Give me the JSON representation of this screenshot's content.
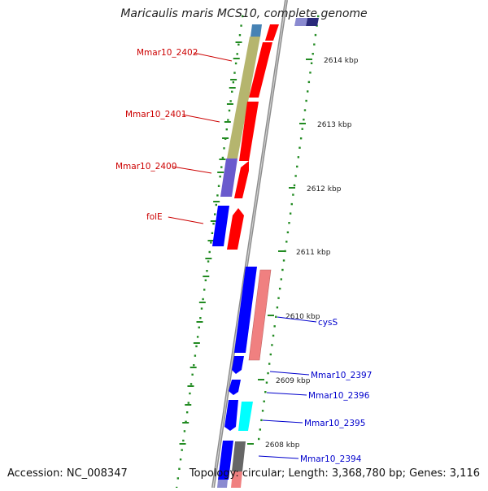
{
  "title": "Maricaulis maris MCS10, complete genome",
  "footer": {
    "accession": "Accession: NC_008347",
    "topology": "Topology: circular; Length: 3,368,780 bp; Genes: 3,116"
  },
  "colors": {
    "backbone": "#888888",
    "tick": "#228B22",
    "label_left": "#cc0000",
    "label_right": "#0000cc",
    "cds_forward": "#ff0000",
    "cds_forward_light": "#f08080",
    "cds_reverse": "#0000ff",
    "trna": "#00ffff",
    "cog_olive": "#b5b56e",
    "cog_purple": "#6a5acd",
    "cog_steelblue": "#4682b4",
    "cog_gray": "#666666"
  },
  "scale": [
    {
      "label": "2614 kbp",
      "kbp": 2614
    },
    {
      "label": "2613 kbp",
      "kbp": 2613
    },
    {
      "label": "2612 kbp",
      "kbp": 2612
    },
    {
      "label": "2611 kbp",
      "kbp": 2611
    },
    {
      "label": "2610 kbp",
      "kbp": 2610
    },
    {
      "label": "2609 kbp",
      "kbp": 2609
    },
    {
      "label": "2608 kbp",
      "kbp": 2608
    }
  ],
  "left_labels": [
    "Mmar10_2402",
    "Mmar10_2401",
    "Mmar10_2400",
    "folE"
  ],
  "right_labels": [
    "cysS",
    "Mmar10_2397",
    "Mmar10_2396",
    "Mmar10_2395",
    "Mmar10_2394"
  ]
}
